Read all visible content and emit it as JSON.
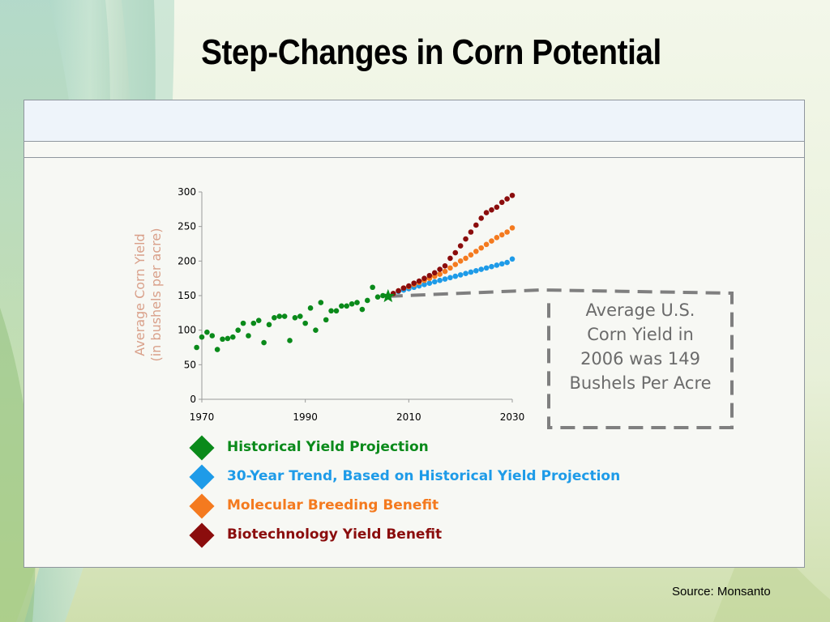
{
  "slide": {
    "title": "Step-Changes in Corn Potential",
    "source": "Source: Monsanto"
  },
  "callout": {
    "lines": [
      "Average U.S.",
      "Corn Yield in",
      "2006 was 149",
      "Bushels Per Acre"
    ]
  },
  "legend": [
    {
      "label": "Historical Yield Projection",
      "color": "#0a8a1a"
    },
    {
      "label": "30-Year Trend, Based on Historical Yield Projection",
      "color": "#1e9be8"
    },
    {
      "label": "Molecular Breeding Benefit",
      "color": "#f47a1f"
    },
    {
      "label": "Biotechnology Yield Benefit",
      "color": "#8b0d0d"
    }
  ],
  "chart_data": {
    "type": "scatter",
    "ylabel_lines": [
      "Average Corn Yield",
      "(in bushels per acre)"
    ],
    "xlim": [
      1970,
      2030
    ],
    "ylim": [
      0,
      300
    ],
    "x_ticks": [
      1970,
      1990,
      2010,
      2030
    ],
    "y_ticks": [
      0,
      50,
      100,
      150,
      200,
      250,
      300
    ],
    "grid": false,
    "marker_2006": {
      "x": 2006,
      "y": 149,
      "shape": "star",
      "color": "#0a8a1a"
    },
    "series": [
      {
        "name": "Historical Yield Projection",
        "color": "#0a8a1a",
        "x": [
          1969,
          1970,
          1971,
          1972,
          1973,
          1974,
          1975,
          1976,
          1977,
          1978,
          1979,
          1980,
          1981,
          1982,
          1983,
          1984,
          1985,
          1986,
          1987,
          1988,
          1989,
          1990,
          1991,
          1992,
          1993,
          1994,
          1995,
          1996,
          1997,
          1998,
          1999,
          2000,
          2001,
          2002,
          2003,
          2004,
          2005
        ],
        "y": [
          75,
          90,
          97,
          92,
          72,
          87,
          88,
          90,
          100,
          110,
          92,
          110,
          114,
          82,
          108,
          118,
          120,
          120,
          85,
          118,
          120,
          110,
          132,
          100,
          140,
          115,
          128,
          128,
          135,
          135,
          138,
          140,
          130,
          143,
          162,
          148,
          150
        ]
      },
      {
        "name": "30-Year Trend, Based on Historical Yield Projection",
        "color": "#1e9be8",
        "x": [
          2007,
          2008,
          2009,
          2010,
          2011,
          2012,
          2013,
          2014,
          2015,
          2016,
          2017,
          2018,
          2019,
          2020,
          2021,
          2022,
          2023,
          2024,
          2025,
          2026,
          2027,
          2028,
          2029,
          2030
        ],
        "y": [
          153,
          156,
          158,
          160,
          162,
          164,
          166,
          168,
          170,
          172,
          174,
          176,
          178,
          180,
          182,
          184,
          186,
          188,
          190,
          192,
          194,
          196,
          198,
          203
        ]
      },
      {
        "name": "Molecular Breeding Benefit",
        "color": "#f47a1f",
        "x": [
          2007,
          2008,
          2009,
          2010,
          2011,
          2012,
          2013,
          2014,
          2015,
          2016,
          2017,
          2018,
          2019,
          2020,
          2021,
          2022,
          2023,
          2024,
          2025,
          2026,
          2027,
          2028,
          2029,
          2030
        ],
        "y": [
          153,
          157,
          161,
          163,
          166,
          169,
          172,
          175,
          178,
          181,
          185,
          190,
          195,
          200,
          204,
          209,
          214,
          219,
          224,
          229,
          234,
          238,
          242,
          248
        ]
      },
      {
        "name": "Biotechnology Yield Benefit",
        "color": "#8b0d0d",
        "x": [
          2007,
          2008,
          2009,
          2010,
          2011,
          2012,
          2013,
          2014,
          2015,
          2016,
          2017,
          2018,
          2019,
          2020,
          2021,
          2022,
          2023,
          2024,
          2025,
          2026,
          2027,
          2028,
          2029,
          2030
        ],
        "y": [
          153,
          157,
          161,
          164,
          168,
          171,
          175,
          179,
          183,
          188,
          193,
          204,
          212,
          222,
          232,
          242,
          252,
          262,
          270,
          274,
          278,
          285,
          290,
          295
        ]
      }
    ]
  }
}
